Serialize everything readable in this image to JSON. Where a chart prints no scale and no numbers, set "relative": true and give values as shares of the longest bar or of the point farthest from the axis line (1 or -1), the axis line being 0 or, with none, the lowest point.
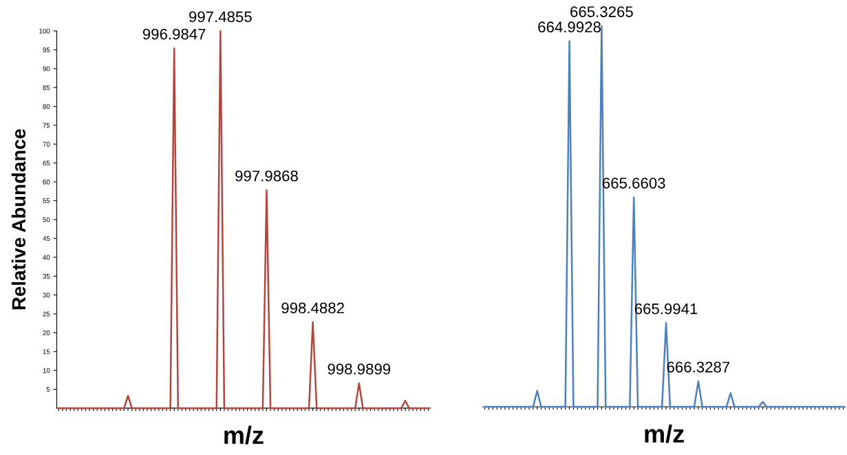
{
  "chart_data": [
    {
      "type": "line",
      "ylabel": "Relative Abundance",
      "xlabel": "m/z",
      "ylim": [
        0,
        100
      ],
      "yticks": [
        5,
        10,
        15,
        20,
        25,
        30,
        35,
        40,
        45,
        50,
        55,
        60,
        65,
        70,
        75,
        80,
        85,
        90,
        95,
        100
      ],
      "grid": false,
      "marker": "none",
      "line_style": "solid",
      "categories": [
        null,
        null,
        null,
        null,
        null,
        null,
        null,
        null,
        null,
        null,
        null,
        null,
        null,
        null,
        null,
        null,
        null,
        null,
        null,
        null,
        null,
        null,
        null,
        null,
        null,
        null,
        null,
        null,
        null,
        null,
        null,
        null,
        null,
        null,
        null,
        null,
        null,
        null,
        null,
        null,
        null,
        null,
        null,
        null,
        null,
        null,
        null,
        null,
        null,
        null,
        null,
        null,
        null,
        null,
        null,
        null,
        null,
        null,
        null,
        null,
        null,
        null,
        null,
        null,
        null,
        null,
        null,
        null,
        null,
        null,
        null,
        null,
        null,
        null,
        null,
        null,
        null,
        null,
        null,
        null,
        null,
        null,
        null,
        null,
        null,
        null,
        null,
        null,
        null,
        null,
        null,
        null,
        null,
        null,
        null,
        null,
        null
      ],
      "series": [
        {
          "color": "#b5443c",
          "values": [
            0,
            0,
            0,
            0,
            0,
            0,
            0,
            0,
            0,
            0,
            0,
            0,
            0,
            0,
            0,
            0,
            0,
            0,
            3.3,
            0,
            0,
            0,
            0,
            0,
            0,
            0,
            0,
            0,
            0,
            0,
            95.4,
            0,
            0,
            0,
            0,
            0,
            0,
            0,
            0,
            0,
            0,
            0,
            100,
            0,
            0,
            0,
            0,
            0,
            0,
            0,
            0,
            0,
            0,
            0,
            57.8,
            0,
            0,
            0,
            0,
            0,
            0,
            0,
            0,
            0,
            0,
            0,
            22.8,
            0,
            0,
            0,
            0,
            0,
            0,
            0,
            0,
            0,
            0,
            0,
            6.6,
            0,
            0,
            0,
            0,
            0,
            0,
            0,
            0,
            0,
            0,
            0,
            2,
            0,
            0,
            0,
            0,
            0,
            0
          ]
        }
      ],
      "annotations": [
        {
          "text": "996.9847",
          "y": 95.4
        },
        {
          "text": "997.4855",
          "y": 100
        },
        {
          "text": "997.9868",
          "y": 57.8
        },
        {
          "text": "998.4882",
          "y": 22.8
        },
        {
          "text": "998.9899",
          "y": 6.6
        }
      ]
    },
    {
      "type": "line",
      "relative": true,
      "xlabel": "m/z",
      "grid": false,
      "marker": "none",
      "line_style": "solid",
      "categories": [
        null,
        null,
        null,
        null,
        null,
        null,
        null,
        null,
        null,
        null,
        null,
        null,
        null,
        null,
        null,
        null,
        null,
        null,
        null,
        null,
        null,
        null,
        null,
        null,
        null,
        null,
        null,
        null,
        null,
        null,
        null,
        null,
        null,
        null,
        null,
        null,
        null,
        null,
        null,
        null,
        null,
        null,
        null,
        null,
        null,
        null,
        null,
        null,
        null,
        null,
        null,
        null,
        null,
        null,
        null,
        null,
        null,
        null,
        null,
        null,
        null,
        null,
        null,
        null,
        null,
        null,
        null,
        null,
        null,
        null,
        null,
        null,
        null,
        null,
        null,
        null,
        null,
        null,
        null,
        null,
        null,
        null,
        null,
        null,
        null,
        null,
        null,
        null,
        null,
        null
      ],
      "series": [
        {
          "color": "#4a7fc1",
          "values": [
            0,
            0,
            0,
            0,
            0,
            0,
            0,
            0,
            0,
            0,
            0,
            0,
            0,
            0.042,
            0,
            0,
            0,
            0,
            0,
            0,
            0,
            0.96,
            0,
            0,
            0,
            0,
            0,
            0,
            0,
            1,
            0,
            0,
            0,
            0,
            0,
            0,
            0,
            0.55,
            0,
            0,
            0,
            0,
            0,
            0,
            0,
            0.22,
            0,
            0,
            0,
            0,
            0,
            0,
            0,
            0.067,
            0,
            0,
            0,
            0,
            0,
            0,
            0,
            0.036,
            0,
            0,
            0,
            0,
            0,
            0,
            0,
            0.013,
            0,
            0,
            0,
            0,
            0,
            0,
            0,
            0,
            0,
            0,
            0,
            0,
            0,
            0,
            0,
            0,
            0,
            0,
            0,
            0
          ]
        }
      ],
      "annotations": [
        {
          "text": "664.9928",
          "y": 0.96
        },
        {
          "text": "665.3265",
          "y": 1
        },
        {
          "text": "665.6603",
          "y": 0.55
        },
        {
          "text": "665.9941",
          "y": 0.22
        },
        {
          "text": "666.3287",
          "y": 0.067
        }
      ]
    }
  ]
}
